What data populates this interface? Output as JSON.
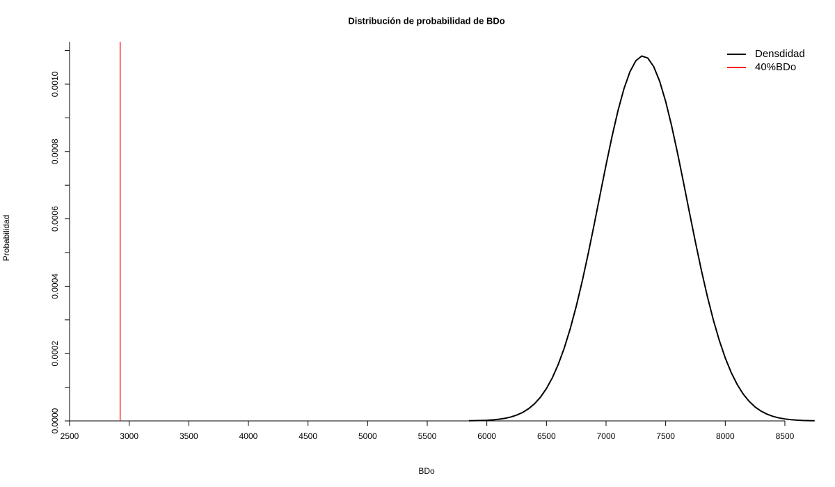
{
  "chart_data": {
    "type": "line",
    "title": "Distribución de probabilidad de BDo",
    "xlabel": "BDo",
    "ylabel": "Probabilidad",
    "x": [
      5850,
      5900,
      5950,
      6000,
      6050,
      6100,
      6150,
      6200,
      6250,
      6300,
      6350,
      6400,
      6450,
      6500,
      6550,
      6600,
      6650,
      6700,
      6750,
      6800,
      6850,
      6900,
      6950,
      7000,
      7050,
      7100,
      7150,
      7200,
      7250,
      7300,
      7350,
      7400,
      7450,
      7500,
      7550,
      7600,
      7650,
      7700,
      7750,
      7800,
      7850,
      7900,
      7950,
      8000,
      8050,
      8100,
      8150,
      8200,
      8250,
      8300,
      8350,
      8400,
      8450,
      8500,
      8550,
      8600,
      8650,
      8700,
      8750
    ],
    "series": [
      {
        "name": "Densdidad",
        "color": "#000000",
        "values": [
          4e-07,
          7e-07,
          1.2e-06,
          1.9e-06,
          3.1e-06,
          4.9e-06,
          7.5e-06,
          1.15e-05,
          1.71e-05,
          2.51e-05,
          3.61e-05,
          5.09e-05,
          7.06e-05,
          9.62e-05,
          0.0001285,
          0.0001686,
          0.000217,
          0.0002744,
          0.0003405,
          0.0004148,
          0.0004962,
          0.0005828,
          0.0006718,
          0.0007602,
          0.0008445,
          0.0009211,
          0.0009862,
          0.0010366,
          0.0010697,
          0.0010836,
          0.0010776,
          0.001052,
          0.0010083,
          0.0009487,
          0.0008763,
          0.0007947,
          0.0007074,
          0.0006182,
          0.0005304,
          0.0004467,
          0.0003693,
          0.0002998,
          0.0002389,
          0.0001869,
          0.0001435,
          0.0001082,
          8.01e-05,
          5.82e-05,
          4.15e-05,
          2.91e-05,
          2e-05,
          1.35e-05,
          8.9e-06,
          5.8e-06,
          3.7e-06,
          2.3e-06,
          1.4e-06,
          9e-07,
          5e-07
        ]
      },
      {
        "name": "40%BDo",
        "color": "#ff0000",
        "vline": 2924
      }
    ],
    "xlim": [
      2500,
      8750
    ],
    "ylim": [
      0,
      0.001126
    ],
    "xticks": [
      2500,
      3000,
      3500,
      4000,
      4500,
      5000,
      5500,
      6000,
      6500,
      7000,
      7500,
      8000,
      8500
    ],
    "yticks": [
      {
        "value": 0,
        "label": "0.0000"
      },
      {
        "value": 0.0002,
        "label": "0.0002"
      },
      {
        "value": 0.0004,
        "label": "0.0004"
      },
      {
        "value": 0.0006,
        "label": "0.0006"
      },
      {
        "value": 0.0008,
        "label": "0.0008"
      },
      {
        "value": 0.001,
        "label": "0.0010"
      }
    ],
    "yminor_ticks": [
      0.0001,
      0.0003,
      0.0005,
      0.0007,
      0.0009,
      0.0011
    ],
    "legend": "top-right",
    "grid": false
  }
}
